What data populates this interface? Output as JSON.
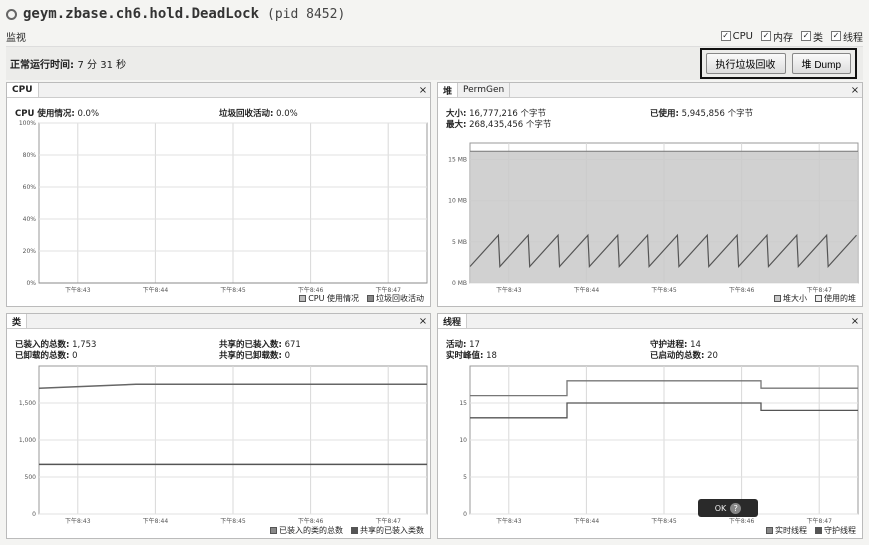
{
  "window": {
    "title": "geym.zbase.ch6.hold.DeadLock",
    "pid": "(pid 8452)"
  },
  "monitor": {
    "label": "监视",
    "checks": [
      {
        "label": "CPU",
        "checked": true
      },
      {
        "label": "内存",
        "checked": true
      },
      {
        "label": "类",
        "checked": true
      },
      {
        "label": "线程",
        "checked": true
      }
    ],
    "uptime_label": "正常运行时间:",
    "uptime_value": "7 分 31 秒",
    "gc_button": "执行垃圾回收",
    "heap_dump_button": "堆 Dump"
  },
  "cpu_panel": {
    "tab": "CPU",
    "usage_label": "CPU 使用情况:",
    "usage_value": "0.0%",
    "gc_label": "垃圾回收活动:",
    "gc_value": "0.0%",
    "legend": [
      "CPU 使用情况",
      "垃圾回收活动"
    ]
  },
  "heap_panel": {
    "tab_active": "堆",
    "tab_other": "PermGen",
    "size_label": "大小:",
    "size_value": "16,777,216 个字节",
    "max_label": "最大:",
    "max_value": "268,435,456 个字节",
    "used_label": "已使用:",
    "used_value": "5,945,856 个字节",
    "legend": [
      "堆大小",
      "使用的堆"
    ]
  },
  "classes_panel": {
    "tab": "类",
    "loaded_label": "已装入的总数:",
    "loaded_value": "1,753",
    "unloaded_label": "已卸载的总数:",
    "unloaded_value": "0",
    "shared_loaded_label": "共享的已装入数:",
    "shared_loaded_value": "671",
    "shared_unloaded_label": "共享的已卸载数:",
    "shared_unloaded_value": "0",
    "legend": [
      "已装入的类的总数",
      "共享的已装入类数"
    ]
  },
  "threads_panel": {
    "tab": "线程",
    "live_label": "活动:",
    "live_value": "17",
    "peak_label": "实时峰值:",
    "peak_value": "18",
    "daemon_label": "守护进程:",
    "daemon_value": "14",
    "started_label": "已启动的总数:",
    "started_value": "20",
    "legend": [
      "实时线程",
      "守护线程"
    ]
  },
  "badge": {
    "text": "OK",
    "icon": "help-icon"
  },
  "chart_data": [
    {
      "type": "line",
      "panel": "CPU",
      "x": [
        "下午8:43",
        "下午8:44",
        "下午8:45",
        "下午8:46",
        "下午8:47"
      ],
      "y_ticks": [
        "0%",
        "20%",
        "40%",
        "60%",
        "80%",
        "100%"
      ],
      "ylim": [
        0,
        100
      ],
      "series": [
        {
          "name": "CPU 使用情况",
          "values": [
            0,
            0,
            0,
            0,
            0
          ]
        },
        {
          "name": "垃圾回收活动",
          "values": [
            0,
            0,
            0,
            0,
            0
          ]
        }
      ]
    },
    {
      "type": "area",
      "panel": "堆",
      "x": [
        "下午8:43",
        "下午8:44",
        "下午8:45",
        "下午8:46",
        "下午8:47"
      ],
      "y_ticks": [
        "0 MB",
        "5 MB",
        "10 MB",
        "15 MB"
      ],
      "ylim": [
        0,
        17
      ],
      "series": [
        {
          "name": "堆大小",
          "values": [
            16,
            16,
            16,
            16,
            16
          ]
        },
        {
          "name": "使用的堆",
          "sawtooth_low": 2,
          "sawtooth_high": 5.8,
          "cycles": 13
        }
      ]
    },
    {
      "type": "line",
      "panel": "类",
      "x": [
        "下午8:43",
        "下午8:44",
        "下午8:45",
        "下午8:46",
        "下午8:47"
      ],
      "y_ticks": [
        "0",
        "500",
        "1,000",
        "1,500"
      ],
      "ylim": [
        0,
        2000
      ],
      "series": [
        {
          "name": "已装入的类的总数",
          "values": [
            1700,
            1753,
            1753,
            1753,
            1753
          ]
        },
        {
          "name": "共享的已装入类数",
          "values": [
            671,
            671,
            671,
            671,
            671
          ]
        }
      ]
    },
    {
      "type": "line",
      "panel": "线程",
      "x": [
        "下午8:43",
        "下午8:44",
        "下午8:45",
        "下午8:46",
        "下午8:47"
      ],
      "y_ticks": [
        "0",
        "5",
        "10",
        "15"
      ],
      "ylim": [
        0,
        20
      ],
      "series": [
        {
          "name": "实时线程",
          "values": [
            16,
            18,
            18,
            17,
            17
          ]
        },
        {
          "name": "守护线程",
          "values": [
            13,
            15,
            15,
            14,
            14
          ]
        }
      ]
    }
  ],
  "colors": {
    "heap_fill": "#c9c9c9",
    "used_line": "#555555",
    "grid": "#d8d8d8"
  }
}
